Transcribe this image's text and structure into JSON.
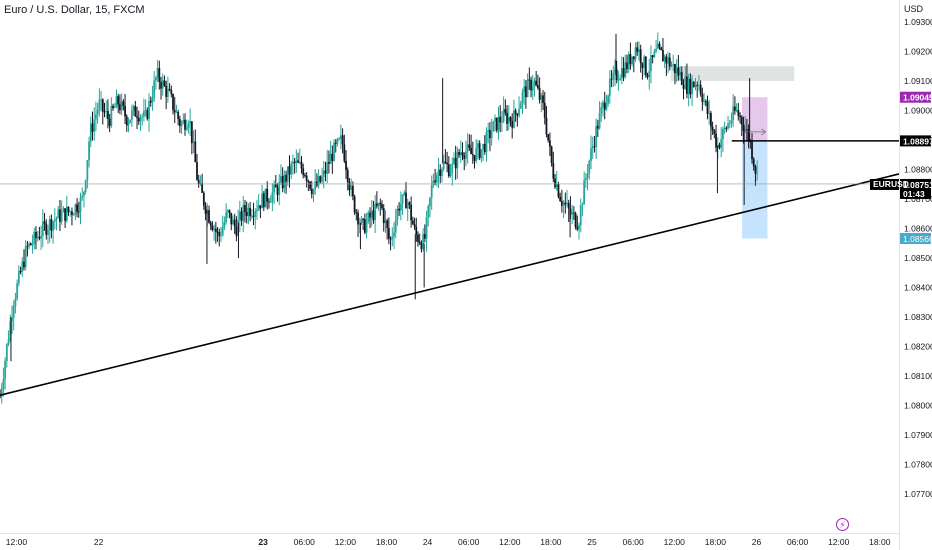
{
  "header": {
    "title": "Euro / U.S. Dollar, 15, FXCM",
    "currency": "USD"
  },
  "chart_data": {
    "type": "candlestick",
    "symbol": "EURUSD",
    "ylim": [
      1.0765,
      1.0935
    ],
    "yticks": [
      {
        "value": 1.093,
        "label": "1.09300"
      },
      {
        "value": 1.092,
        "label": "1.09200"
      },
      {
        "value": 1.091,
        "label": "1.09100"
      },
      {
        "value": 1.09,
        "label": "1.09000"
      },
      {
        "value": 1.089,
        "label": "1.08900"
      },
      {
        "value": 1.088,
        "label": "1.08800"
      },
      {
        "value": 1.087,
        "label": "1.08700"
      },
      {
        "value": 1.086,
        "label": "1.08600"
      },
      {
        "value": 1.085,
        "label": "1.08500"
      },
      {
        "value": 1.084,
        "label": "1.08400"
      },
      {
        "value": 1.083,
        "label": "1.08300"
      },
      {
        "value": 1.082,
        "label": "1.08200"
      },
      {
        "value": 1.081,
        "label": "1.08100"
      },
      {
        "value": 1.08,
        "label": "1.08000"
      },
      {
        "value": 1.079,
        "label": "1.07900"
      },
      {
        "value": 1.078,
        "label": "1.07800"
      },
      {
        "value": 1.077,
        "label": "1.07700"
      }
    ],
    "xticks": [
      {
        "t": -12,
        "label": "12:00",
        "bold": false
      },
      {
        "t": 0,
        "label": "22",
        "bold": false
      },
      {
        "t": 24,
        "label": "23",
        "bold": true
      },
      {
        "t": 30,
        "label": "06:00",
        "bold": false
      },
      {
        "t": 36,
        "label": "12:00",
        "bold": false
      },
      {
        "t": 42,
        "label": "18:00",
        "bold": false
      },
      {
        "t": 48,
        "label": "24",
        "bold": false
      },
      {
        "t": 54,
        "label": "06:00",
        "bold": false
      },
      {
        "t": 60,
        "label": "12:00",
        "bold": false
      },
      {
        "t": 66,
        "label": "18:00",
        "bold": false
      },
      {
        "t": 72,
        "label": "25",
        "bold": false
      },
      {
        "t": 78,
        "label": "06:00",
        "bold": false
      },
      {
        "t": 84,
        "label": "12:00",
        "bold": false
      },
      {
        "t": 90,
        "label": "18:00",
        "bold": false
      },
      {
        "t": 96,
        "label": "26",
        "bold": false
      },
      {
        "t": 102,
        "label": "06:00",
        "bold": false
      },
      {
        "t": 108,
        "label": "12:00",
        "bold": false
      },
      {
        "t": 114,
        "label": "18:00",
        "bold": false
      }
    ],
    "xlim": [
      -14.4,
      116.8
    ],
    "price_path": [
      [
        -14.4,
        1.0803
      ],
      [
        -12.5,
        1.0835
      ],
      [
        -10.5,
        1.0853
      ],
      [
        -8,
        1.086
      ],
      [
        -6,
        1.0864
      ],
      [
        -4,
        1.0866
      ],
      [
        -2.3,
        1.087
      ],
      [
        -1.3,
        1.0892
      ],
      [
        0,
        1.0902
      ],
      [
        1.5,
        1.0897
      ],
      [
        2.8,
        1.0903
      ],
      [
        4.2,
        1.0897
      ],
      [
        5.5,
        1.09
      ],
      [
        6.8,
        1.0897
      ],
      [
        8.5,
        1.0912
      ],
      [
        10.3,
        1.0905
      ],
      [
        12,
        1.0895
      ],
      [
        13.2,
        1.0898
      ],
      [
        14.5,
        1.0875
      ],
      [
        16,
        1.0865
      ],
      [
        17.5,
        1.0857
      ],
      [
        18.8,
        1.0865
      ],
      [
        20,
        1.086
      ],
      [
        21.2,
        1.0866
      ],
      [
        22.7,
        1.0867
      ],
      [
        24,
        1.087
      ],
      [
        25.5,
        1.0872
      ],
      [
        27,
        1.0876
      ],
      [
        28.5,
        1.0882
      ],
      [
        30,
        1.088
      ],
      [
        31.3,
        1.0873
      ],
      [
        32.7,
        1.0877
      ],
      [
        34,
        1.0885
      ],
      [
        35.5,
        1.089
      ],
      [
        37,
        1.087
      ],
      [
        38.5,
        1.086
      ],
      [
        40,
        1.0865
      ],
      [
        41.2,
        1.0868
      ],
      [
        42.5,
        1.0855
      ],
      [
        43.8,
        1.0868
      ],
      [
        45,
        1.087
      ],
      [
        46.2,
        1.0858
      ],
      [
        47.5,
        1.0855
      ],
      [
        48.8,
        1.0877
      ],
      [
        50.2,
        1.0882
      ],
      [
        51.5,
        1.088
      ],
      [
        53,
        1.0887
      ],
      [
        54.5,
        1.0885
      ],
      [
        56,
        1.0887
      ],
      [
        57.5,
        1.0894
      ],
      [
        59,
        1.0898
      ],
      [
        60.5,
        1.0897
      ],
      [
        62,
        1.0906
      ],
      [
        63.5,
        1.091
      ],
      [
        65,
        1.09
      ],
      [
        66.2,
        1.088
      ],
      [
        67.5,
        1.087
      ],
      [
        68.8,
        1.0865
      ],
      [
        70,
        1.0862
      ],
      [
        71.3,
        1.088
      ],
      [
        72.8,
        1.0895
      ],
      [
        74.2,
        1.0906
      ],
      [
        75.5,
        1.0912
      ],
      [
        77,
        1.0915
      ],
      [
        78.5,
        1.0922
      ],
      [
        80,
        1.0913
      ],
      [
        81.5,
        1.092
      ],
      [
        83,
        1.0917
      ],
      [
        84.5,
        1.0913
      ],
      [
        86,
        1.0908
      ],
      [
        87.5,
        1.091
      ],
      [
        89,
        1.0898
      ],
      [
        90.3,
        1.0888
      ],
      [
        91.5,
        1.0894
      ],
      [
        93,
        1.09
      ],
      [
        94,
        1.0896
      ],
      [
        95,
        1.089
      ],
      [
        96.3,
        1.08751
      ]
    ],
    "spikes": [
      {
        "t": -12.8,
        "low": 1.0815
      },
      {
        "t": 15.8,
        "low": 1.0848
      },
      {
        "t": 20.4,
        "low": 1.085
      },
      {
        "t": 38.2,
        "low": 1.0853
      },
      {
        "t": 46.2,
        "low": 1.0836
      },
      {
        "t": 47.5,
        "low": 1.084
      },
      {
        "t": 50.2,
        "high": 1.0911
      },
      {
        "t": 68.8,
        "low": 1.0857
      },
      {
        "t": 75.5,
        "high": 1.0926
      },
      {
        "t": 90.3,
        "low": 1.0872
      },
      {
        "t": 94.2,
        "low": 1.0868
      },
      {
        "t": 95,
        "high": 1.0911
      }
    ],
    "trendline": {
      "from": {
        "t": -14.4,
        "price": 1.08035
      },
      "to": {
        "t": 116.8,
        "price": 1.08785
      }
    },
    "current_price": 1.08751,
    "current_price_label": "1.08751",
    "countdown": "01:43",
    "level_price": 1.08897,
    "level_label": "1.08897",
    "supply_zone": {
      "t_from": 83.5,
      "t_to": 101.5,
      "price_low": 1.091,
      "price_high": 1.0915
    },
    "long_position": {
      "t_from": 93.9,
      "t_to": 97.6,
      "entry": 1.08897,
      "target": 1.09045,
      "stop": 1.08566,
      "target_label": "1.09045",
      "stop_label": "1.08566"
    },
    "colors": {
      "up": "#26a69a",
      "down": "#131722",
      "trend": "#000000",
      "target_zone": "#e1bee7",
      "target_tag": "#9c27b0",
      "stop_zone": "#bbdefb",
      "stop_tag": "#4aa8c8",
      "supply_zone": "#e0e3e3"
    }
  }
}
